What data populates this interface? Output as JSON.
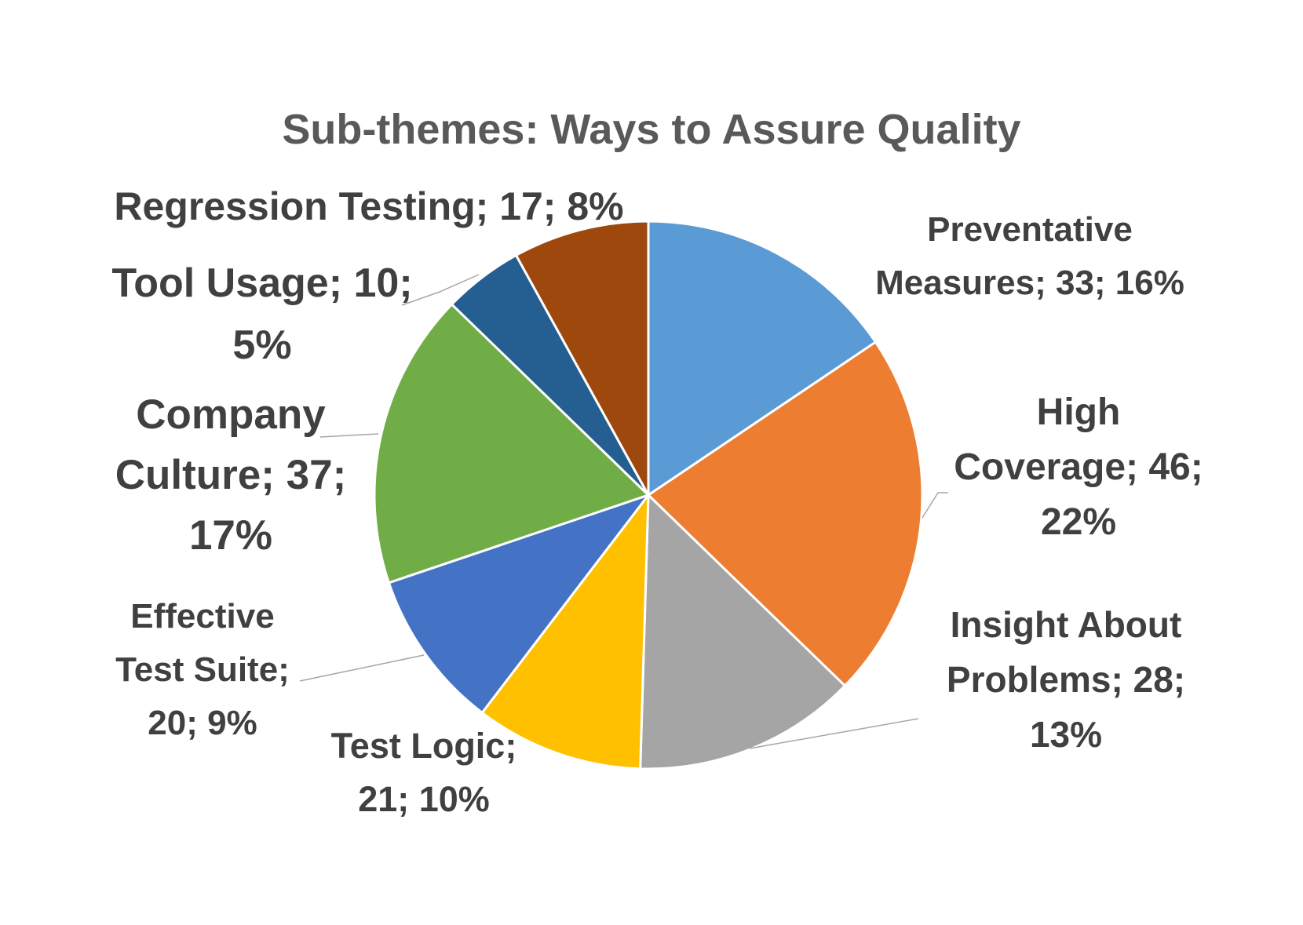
{
  "chart_data": {
    "type": "pie",
    "title": "Sub-themes: Ways to Assure Quality",
    "slices": [
      {
        "label": "Preventative Measures",
        "value": 33,
        "percent": "16%",
        "color": "#5b9bd5"
      },
      {
        "label": "High Coverage",
        "value": 46,
        "percent": "22%",
        "color": "#ed7d31"
      },
      {
        "label": "Insight About Problems",
        "value": 28,
        "percent": "13%",
        "color": "#a5a5a5"
      },
      {
        "label": "Test Logic",
        "value": 21,
        "percent": "10%",
        "color": "#ffc000"
      },
      {
        "label": "Effective Test Suite",
        "value": 20,
        "percent": "9%",
        "color": "#4472c4"
      },
      {
        "label": "Company Culture",
        "value": 37,
        "percent": "17%",
        "color": "#70ad47"
      },
      {
        "label": "Tool Usage",
        "value": 10,
        "percent": "5%",
        "color": "#255e91"
      },
      {
        "label": "Regression Testing",
        "value": 17,
        "percent": "8%",
        "color": "#9e480e"
      }
    ],
    "data_labels": [
      [
        "Preventative",
        "Measures; 33; 16%"
      ],
      [
        "High",
        "Coverage; 46;",
        "22%"
      ],
      [
        "Insight About",
        "Problems; 28;",
        "13%"
      ],
      [
        "Test Logic;",
        "21; 10%"
      ],
      [
        "Effective",
        "Test Suite;",
        "20; 9%"
      ],
      [
        "Company",
        "Culture; 37;",
        "17%"
      ],
      [
        "Tool Usage; 10;",
        "5%"
      ],
      [
        "Regression Testing; 17; 8%"
      ]
    ],
    "start_angle": "12 o'clock",
    "direction": "clockwise",
    "legend": "none"
  }
}
